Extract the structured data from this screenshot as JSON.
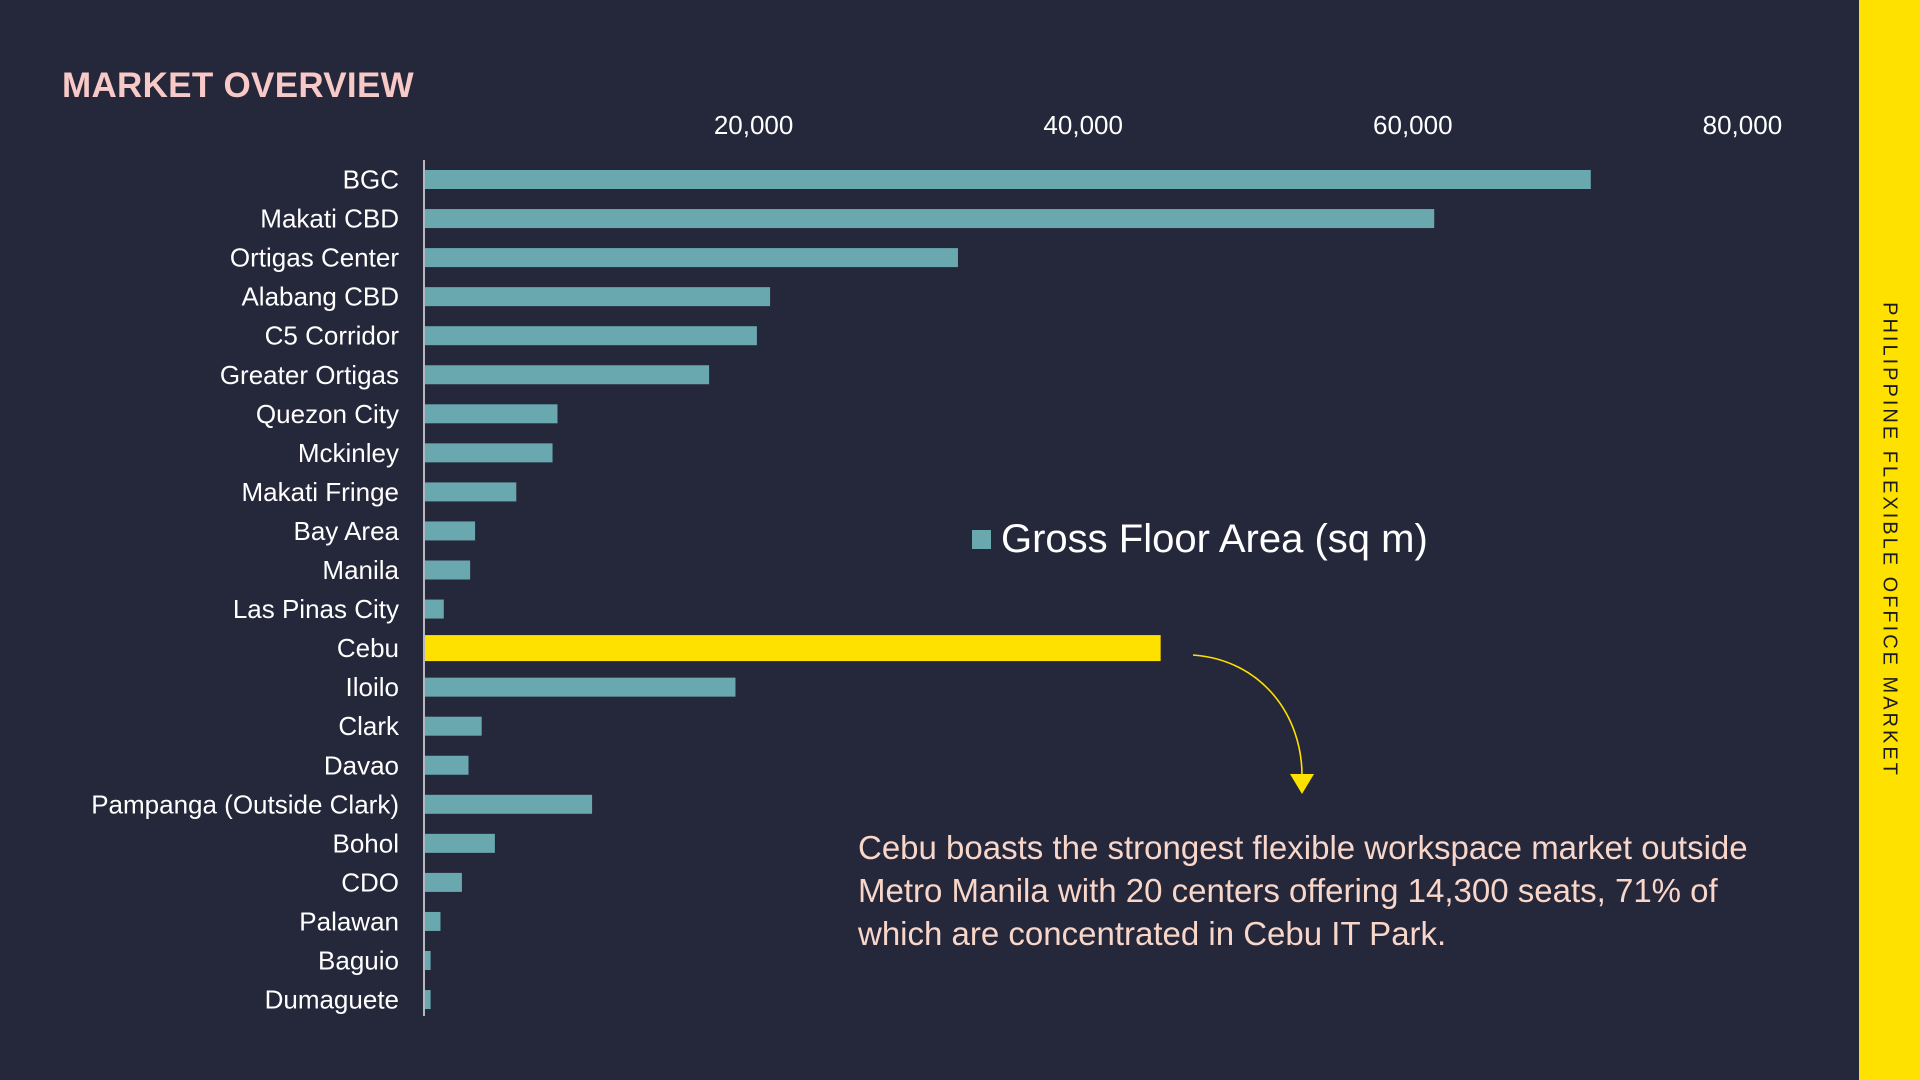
{
  "page": {
    "title": "MARKET OVERVIEW",
    "side_label": "PHILIPPINE FLEXIBLE OFFICE MARKET",
    "callout": "Cebu boasts the strongest flexible workspace market outside Metro Manila with 20 centers offering 14,300 seats, 71% of which are concentrated in Cebu IT Park."
  },
  "colors": {
    "background": "#25273a",
    "bar": "#6aa8b0",
    "highlight": "#ffe100",
    "title": "#f8c9c6",
    "callout": "#f8d6c9"
  },
  "chart_data": {
    "type": "bar",
    "orientation": "horizontal",
    "series": [
      {
        "name": "Gross Floor Area (sq m)",
        "values": [
          70800,
          61300,
          32400,
          21000,
          20200,
          17300,
          8100,
          7800,
          5600,
          3100,
          2800,
          1200,
          44700,
          18900,
          3500,
          2700,
          10200,
          4300,
          2300,
          1000,
          400,
          400
        ]
      }
    ],
    "categories": [
      "BGC",
      "Makati CBD",
      "Ortigas Center",
      "Alabang CBD",
      "C5 Corridor",
      "Greater Ortigas",
      "Quezon City",
      "Mckinley",
      "Makati Fringe",
      "Bay Area",
      "Manila",
      "Las Pinas City",
      "Cebu",
      "Iloilo",
      "Clark",
      "Davao",
      "Pampanga (Outside Clark)",
      "Bohol",
      "CDO",
      "Palawan",
      "Baguio",
      "Dumaguete"
    ],
    "highlight": "Cebu",
    "xlim": [
      0,
      80000
    ],
    "xticks": [
      20000,
      40000,
      60000,
      80000
    ],
    "xtick_labels": [
      "20,000",
      "40,000",
      "60,000",
      "80,000"
    ],
    "x_axis_position": "top",
    "grid": false,
    "legend_position": "center-right"
  }
}
